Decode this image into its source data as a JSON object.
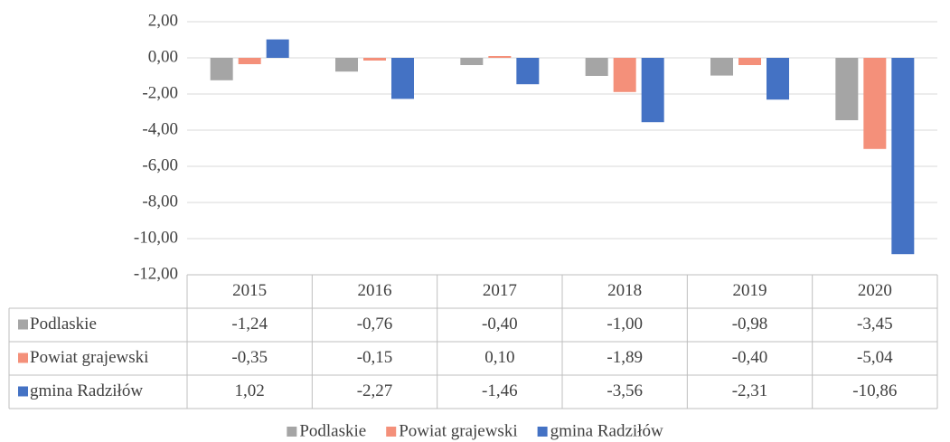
{
  "chart_data": {
    "type": "bar",
    "categories": [
      "2015",
      "2016",
      "2017",
      "2018",
      "2019",
      "2020"
    ],
    "series": [
      {
        "name": "Podlaskie",
        "color": "#a5a5a5",
        "values": [
          -1.24,
          -0.76,
          -0.4,
          -1.0,
          -0.98,
          -3.45
        ],
        "value_labels": [
          "-1,24",
          "-0,76",
          "-0,40",
          "-1,00",
          "-0,98",
          "-3,45"
        ]
      },
      {
        "name": "Powiat grajewski",
        "color": "#f4907a",
        "values": [
          -0.35,
          -0.15,
          0.1,
          -1.89,
          -0.4,
          -5.04
        ],
        "value_labels": [
          "-0,35",
          "-0,15",
          "0,10",
          "-1,89",
          "-0,40",
          "-5,04"
        ]
      },
      {
        "name": "gmina Radziłów",
        "color": "#4472c4",
        "values": [
          1.02,
          -2.27,
          -1.46,
          -3.56,
          -2.31,
          -10.86
        ],
        "value_labels": [
          "1,02",
          "-2,27",
          "-1,46",
          "-3,56",
          "-2,31",
          "-10,86"
        ]
      }
    ],
    "ylim": [
      -12,
      2
    ],
    "yticks": [
      {
        "value": 2,
        "label": "2,00"
      },
      {
        "value": 0,
        "label": "0,00"
      },
      {
        "value": -2,
        "label": "-2,00"
      },
      {
        "value": -4,
        "label": "-4,00"
      },
      {
        "value": -6,
        "label": "-6,00"
      },
      {
        "value": -8,
        "label": "-8,00"
      },
      {
        "value": -10,
        "label": "-10,00"
      },
      {
        "value": -12,
        "label": "-12,00"
      }
    ],
    "grid": true,
    "legend": "bottom"
  }
}
